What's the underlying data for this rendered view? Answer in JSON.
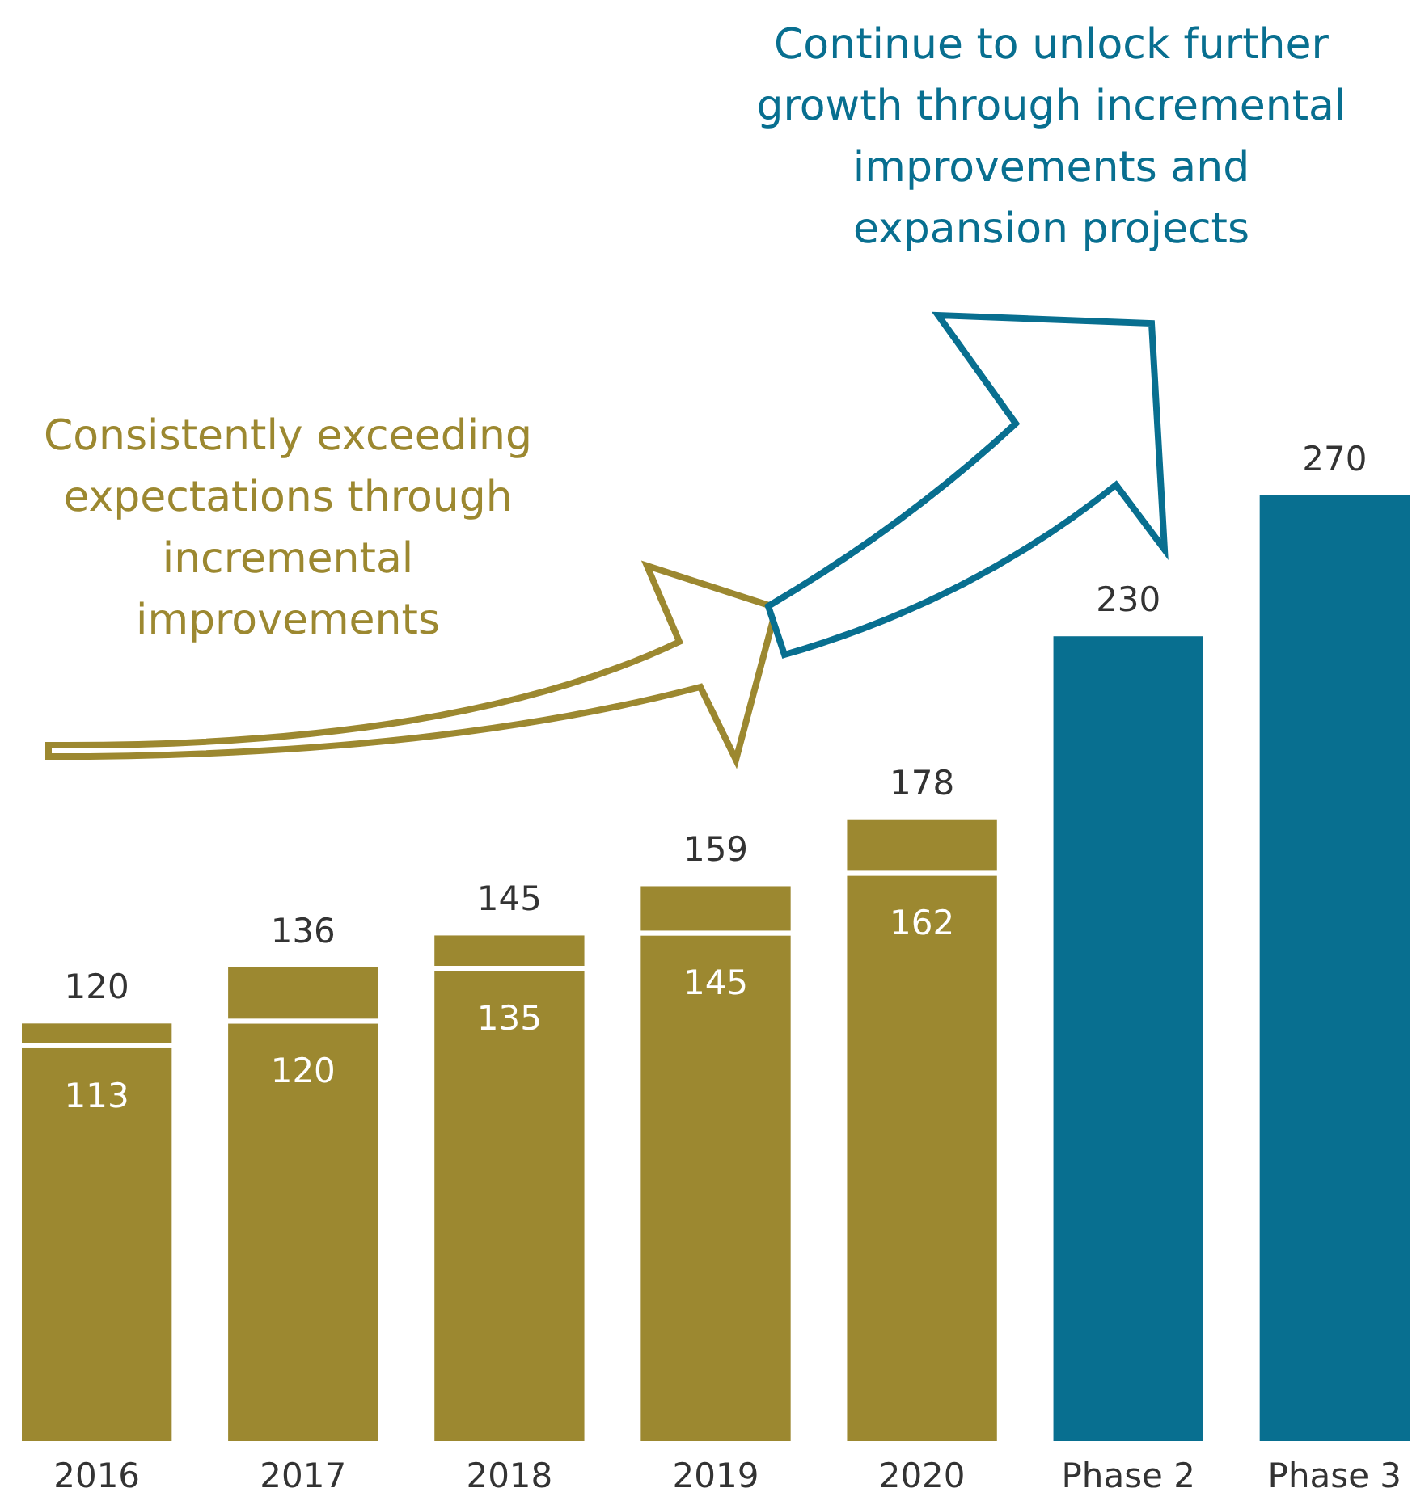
{
  "chart_data": {
    "type": "bar",
    "stacked": true,
    "categories": [
      "2016",
      "2017",
      "2018",
      "2019",
      "2020",
      "Phase 2",
      "Phase 3"
    ],
    "series": [
      {
        "colors": [
          "#9c8830",
          "#9c8830",
          "#9c8830",
          "#9c8830",
          "#9c8830",
          "#086f90",
          "#086f90"
        ],
        "values": [
          113,
          120,
          135,
          145,
          162,
          230,
          270
        ],
        "value_labels": [
          "113",
          "120",
          "135",
          "145",
          "162",
          null,
          null
        ]
      },
      {
        "color": "#9c8830",
        "values": [
          7,
          16,
          10,
          14,
          16,
          null,
          null
        ]
      }
    ],
    "totals": [
      "120",
      "136",
      "145",
      "159",
      "178",
      "230",
      "270"
    ],
    "annotations": [
      "Consistently exceeding\nexpectations through\nincremental\nimprovements",
      "Continue to unlock further\ngrowth through incremental\nimprovements and\nexpansion projects"
    ]
  }
}
